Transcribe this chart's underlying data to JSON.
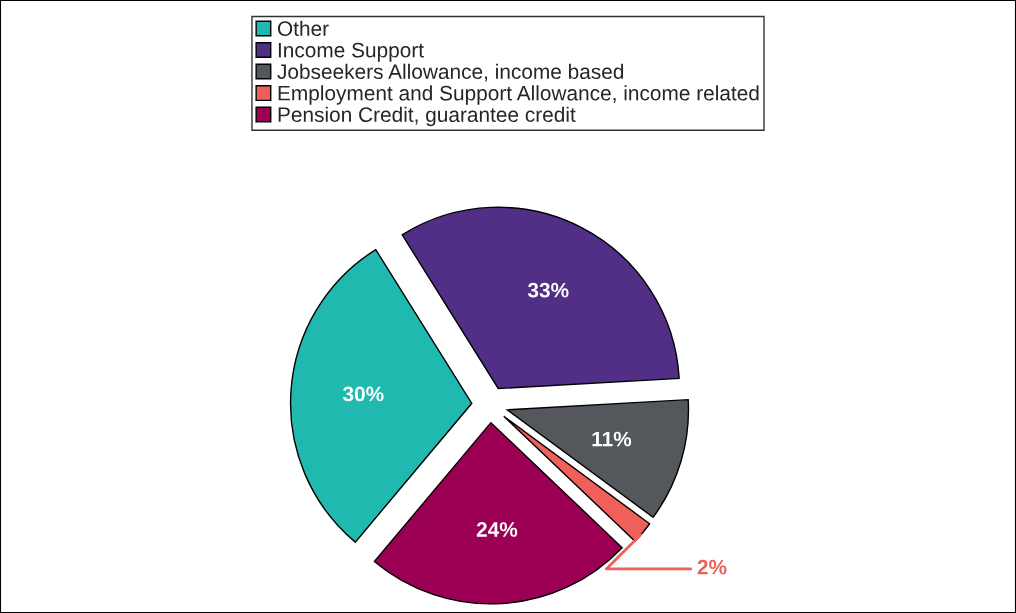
{
  "chart_data": {
    "type": "pie",
    "categories": [
      "Other",
      "Income Support",
      "Jobseekers Allowance, income based",
      "Employment and Support Allowance, income related",
      "Pension Credit, guarantee credit"
    ],
    "values": [
      30,
      33,
      11,
      2,
      24
    ],
    "colors": [
      "#20b9b0",
      "#512f86",
      "#54575c",
      "#f0605a",
      "#9c0054"
    ],
    "value_labels": [
      "30%",
      "33%",
      "11%",
      "2%",
      "24%"
    ],
    "legend": "top"
  }
}
